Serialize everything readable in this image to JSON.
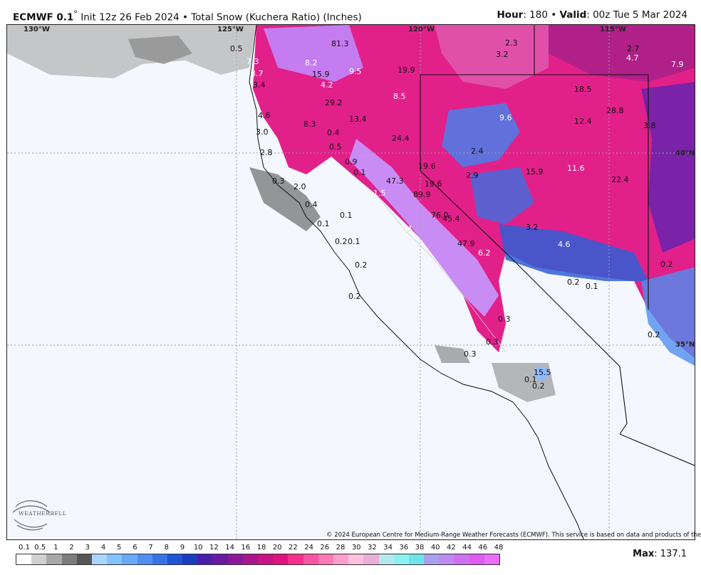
{
  "header": {
    "model": "ECMWF 0.1",
    "degree": "°",
    "init": " Init 12z 26 Feb 2024",
    "bullet": " • ",
    "product": "Total Snow (Kuchera Ratio) (Inches)",
    "hour_label": "Hour",
    "hour_value": ": 180",
    "valid_label": "Valid",
    "valid_value": ": 00z Tue 5 Mar 2024"
  },
  "coords": {
    "lon130": "130°W",
    "lon125": "125°W",
    "lon120": "120°W",
    "lon115": "115°W",
    "lat40": "40°N",
    "lat35": "35°N"
  },
  "values": [
    "81.3",
    "0.5",
    "7.3",
    "8.2",
    "9.5",
    "8.7",
    "15.9",
    "19.9",
    "2.3",
    "3.2",
    "2.7",
    "4.7",
    "7.9",
    "3.4",
    "4.2",
    "8.5",
    "18.5",
    "29.2",
    "4.6",
    "13.4",
    "8.3",
    "9.6",
    "12.4",
    "28.8",
    "3.8",
    "3.0",
    "0.4",
    "24.4",
    "2.8",
    "0.5",
    "2.4",
    "0.9",
    "19.6",
    "15.9",
    "11.6",
    "0.1",
    "2.9",
    "0.3",
    "47.3",
    "19.6",
    "22.4",
    "2.0",
    "1.5",
    "89.9",
    "0.4",
    "76.0",
    "45.4",
    "0.1",
    "0.1",
    "5.4",
    "3.2",
    "0.2",
    "0.1",
    "47.9",
    "4.6",
    "6.2",
    "0.2",
    "0.2",
    "0.2",
    "0.1",
    "0.2",
    "0.3",
    "0.2",
    "0.3",
    "0.3",
    "15.5",
    "0.1",
    "0.2"
  ],
  "copyright": "© 2024 European Centre for Medium-Range Weather Forecasts (ECMWF). This service is based on data and products of the ECMWF.",
  "logo_text": "WEATHERBELL",
  "colorbar": {
    "ticks": [
      "0.1",
      "0.5",
      "1",
      "2",
      "3",
      "4",
      "5",
      "6",
      "7",
      "8",
      "9",
      "10",
      "12",
      "14",
      "16",
      "18",
      "20",
      "22",
      "24",
      "26",
      "28",
      "30",
      "32",
      "34",
      "36",
      "38",
      "40",
      "42",
      "44",
      "46",
      "48"
    ],
    "colors": [
      "#ffffff",
      "#d0d0d0",
      "#a8a8a8",
      "#7c7c7c",
      "#565656",
      "#a9d6ff",
      "#86c2ff",
      "#6aa9f7",
      "#4f8ff0",
      "#3574e6",
      "#1e55d6",
      "#1a3cbf",
      "#4a1ea8",
      "#6a1aa0",
      "#8a1898",
      "#a8168e",
      "#c61486",
      "#e0127e",
      "#f62f8f",
      "#f954a4",
      "#fb7bb8",
      "#fd9fcb",
      "#ffc0dc",
      "#e6b0d8",
      "#b6e8ef",
      "#8cf0f0",
      "#6fe4e8",
      "#a8a0ee",
      "#c08af0",
      "#d070f0",
      "#de5cf0",
      "#e86ef5"
    ]
  },
  "max_label": "Max",
  "max_value": ": 137.1"
}
